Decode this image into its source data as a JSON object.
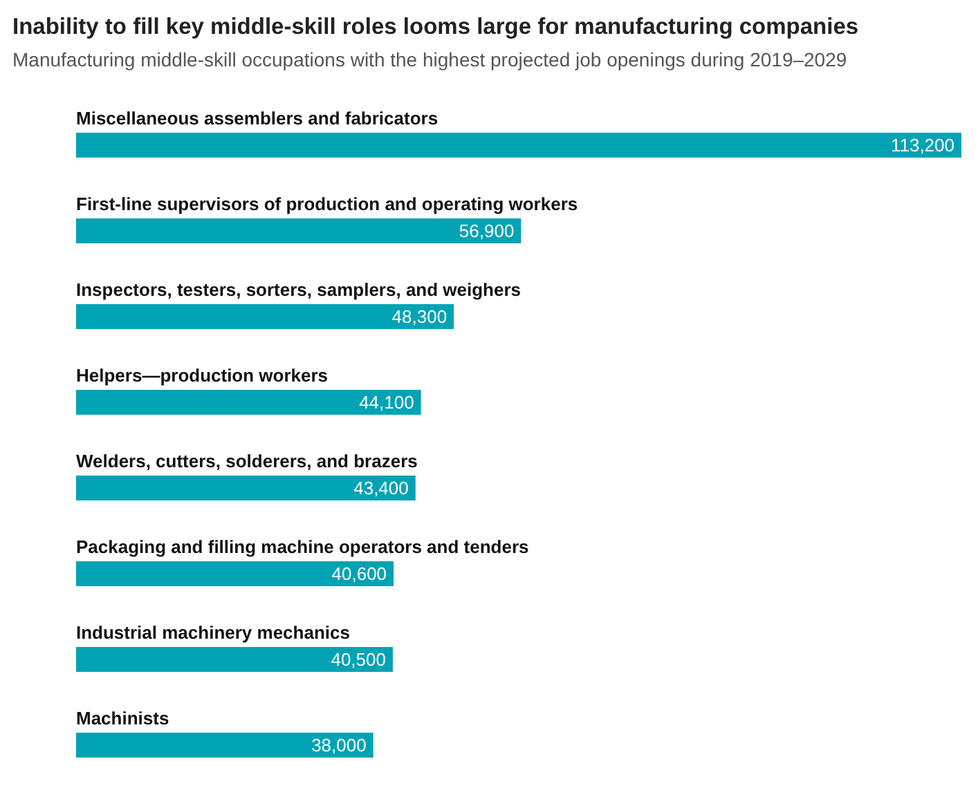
{
  "chart_data": {
    "type": "bar",
    "orientation": "horizontal",
    "title": "Inability to fill key middle-skill roles looms large for manufacturing companies",
    "subtitle": "Manufacturing middle-skill occupations with the highest projected job openings during 2019–2029",
    "categories": [
      "Miscellaneous assemblers and fabricators",
      "First-line supervisors of production and operating workers",
      "Inspectors, testers, sorters, samplers, and weighers",
      "Helpers—production workers",
      "Welders, cutters, solderers, and brazers",
      "Packaging and filling machine operators and tenders",
      "Industrial machinery mechanics",
      "Machinists"
    ],
    "values": [
      113200,
      56900,
      48300,
      44100,
      43400,
      40600,
      40500,
      38000
    ],
    "value_labels": [
      "113,200",
      "56,900",
      "48,300",
      "44,100",
      "43,400",
      "40,600",
      "40,500",
      "38,000"
    ],
    "color": "#00a3b4",
    "tick_labels": false
  }
}
